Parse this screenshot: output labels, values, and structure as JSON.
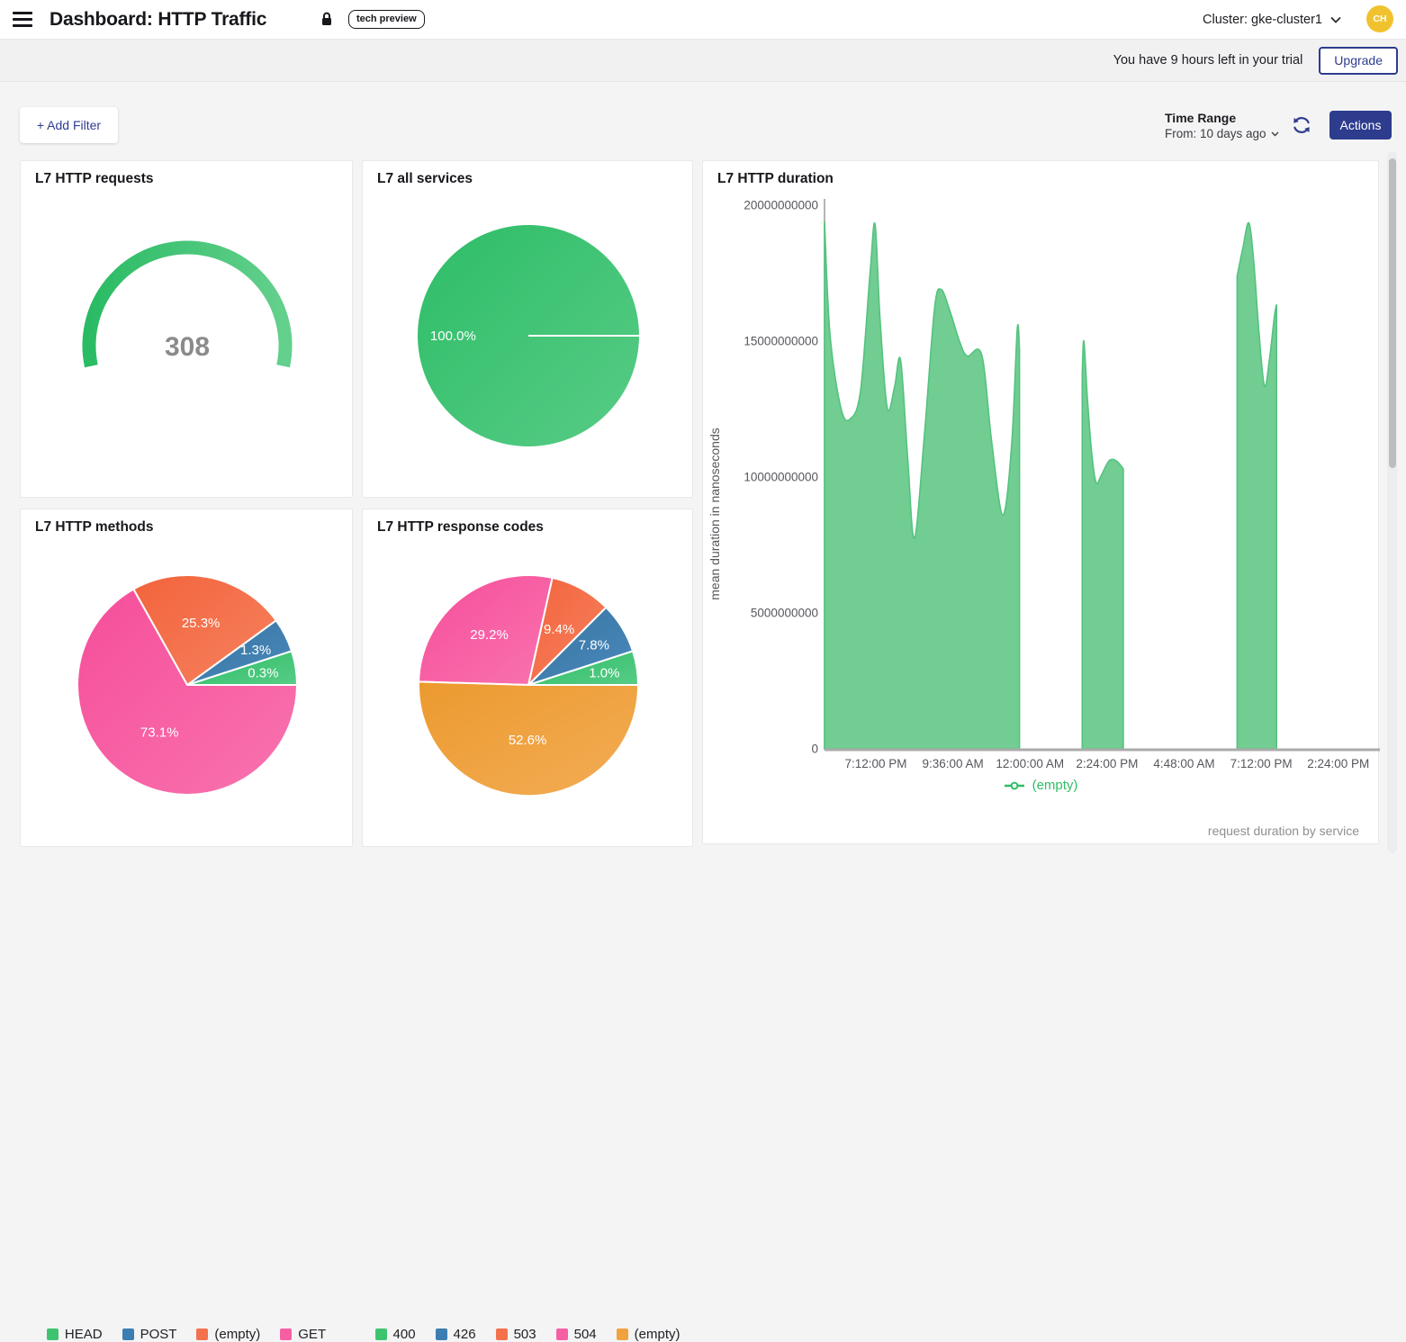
{
  "header": {
    "title": "Dashboard: HTTP Traffic",
    "badge": "tech preview",
    "cluster": "Cluster: gke-cluster1",
    "avatar_initials": "CH"
  },
  "trial_banner": {
    "message": "You have 9 hours left in your trial",
    "upgrade_label": "Upgrade"
  },
  "toolbar": {
    "add_filter_label": "+ Add Filter",
    "time_range_title": "Time Range",
    "time_range_value": "From: 10 days ago",
    "actions_label": "Actions"
  },
  "colors": {
    "navy": "#2E3C8E",
    "green": "#3EC46F",
    "blue": "#3D7EB2",
    "salmon": "#F4714D",
    "pink": "#F75FA4",
    "orange": "#F0A23F",
    "area_fill": "#72CD92",
    "area_line": "#53C37F",
    "legend_green": "#2FBE66",
    "axis_text": "#56575C",
    "gauge_value": "#8B8B8B",
    "avatar_bg": "#F0C22E"
  },
  "chart_data": [
    {
      "id": "l7-http-requests",
      "type": "gauge",
      "title": "L7 HTTP requests",
      "value": "308",
      "color_start": "#2ABB64",
      "color_end": "#64D08D"
    },
    {
      "id": "l7-all-services",
      "type": "pie",
      "title": "L7 all services",
      "slices": [
        {
          "label": "(empty)",
          "pct": 100.0,
          "color": "green"
        }
      ]
    },
    {
      "id": "l7-http-duration",
      "type": "area",
      "title": "L7 HTTP duration",
      "ylabel": "mean duration in nanoseconds",
      "caption": "request duration by service",
      "legend_label": "(empty)",
      "ylim": [
        0,
        20000000000
      ],
      "yticks": [
        0,
        5000000000,
        10000000000,
        15000000000,
        20000000000
      ],
      "xticks": [
        "7:12:00 PM",
        "9:36:00 AM",
        "12:00:00 AM",
        "2:24:00 PM",
        "4:48:00 AM",
        "7:12:00 PM",
        "2:24:00 PM"
      ],
      "series": [
        {
          "name": "(empty)",
          "unit": "nanoseconds",
          "segments": [
            [
              [
                0.0,
                19400000000
              ],
              [
                0.01,
                15200000000
              ],
              [
                0.03,
                12500000000
              ],
              [
                0.047,
                12150000000
              ],
              [
                0.065,
                13200000000
              ],
              [
                0.082,
                17500000000
              ],
              [
                0.091,
                19300000000
              ],
              [
                0.1,
                15800000000
              ],
              [
                0.113,
                12550000000
              ],
              [
                0.126,
                13300000000
              ],
              [
                0.137,
                14300000000
              ],
              [
                0.15,
                10600000000
              ],
              [
                0.162,
                7750000000
              ],
              [
                0.18,
                11600000000
              ],
              [
                0.198,
                16200000000
              ],
              [
                0.21,
                16900000000
              ],
              [
                0.226,
                16100000000
              ],
              [
                0.243,
                15000000000
              ],
              [
                0.257,
                14450000000
              ],
              [
                0.283,
                14500000000
              ],
              [
                0.301,
                11300000000
              ],
              [
                0.321,
                8600000000
              ],
              [
                0.337,
                11200000000
              ],
              [
                0.347,
                15450000000
              ],
              [
                0.351,
                14700000000
              ]
            ],
            [
              [
                0.464,
                13800000000
              ],
              [
                0.467,
                15000000000
              ],
              [
                0.473,
                13000000000
              ],
              [
                0.481,
                10900000000
              ],
              [
                0.489,
                9800000000
              ],
              [
                0.498,
                10050000000
              ],
              [
                0.509,
                10500000000
              ],
              [
                0.517,
                10650000000
              ],
              [
                0.528,
                10550000000
              ],
              [
                0.538,
                10300000000
              ]
            ],
            [
              [
                0.743,
                17400000000
              ],
              [
                0.753,
                18400000000
              ],
              [
                0.764,
                19350000000
              ],
              [
                0.773,
                17900000000
              ],
              [
                0.782,
                15400000000
              ],
              [
                0.792,
                13350000000
              ],
              [
                0.801,
                14300000000
              ],
              [
                0.81,
                15900000000
              ],
              [
                0.814,
                16350000000
              ]
            ]
          ]
        }
      ]
    },
    {
      "id": "l7-http-methods",
      "type": "pie",
      "title": "L7 HTTP methods",
      "slices": [
        {
          "label": "HEAD",
          "pct": 0.3,
          "color": "green"
        },
        {
          "label": "POST",
          "pct": 1.3,
          "color": "blue"
        },
        {
          "label": "(empty)",
          "pct": 25.3,
          "color": "salmon"
        },
        {
          "label": "GET",
          "pct": 73.1,
          "color": "pink"
        }
      ]
    },
    {
      "id": "l7-http-response-codes",
      "type": "pie",
      "title": "L7 HTTP response codes",
      "slices": [
        {
          "label": "400",
          "pct": 1.0,
          "color": "green"
        },
        {
          "label": "426",
          "pct": 7.8,
          "color": "blue"
        },
        {
          "label": "503",
          "pct": 9.4,
          "color": "salmon"
        },
        {
          "label": "504",
          "pct": 29.2,
          "color": "pink"
        },
        {
          "label": "(empty)",
          "pct": 52.6,
          "color": "orange"
        }
      ]
    }
  ]
}
